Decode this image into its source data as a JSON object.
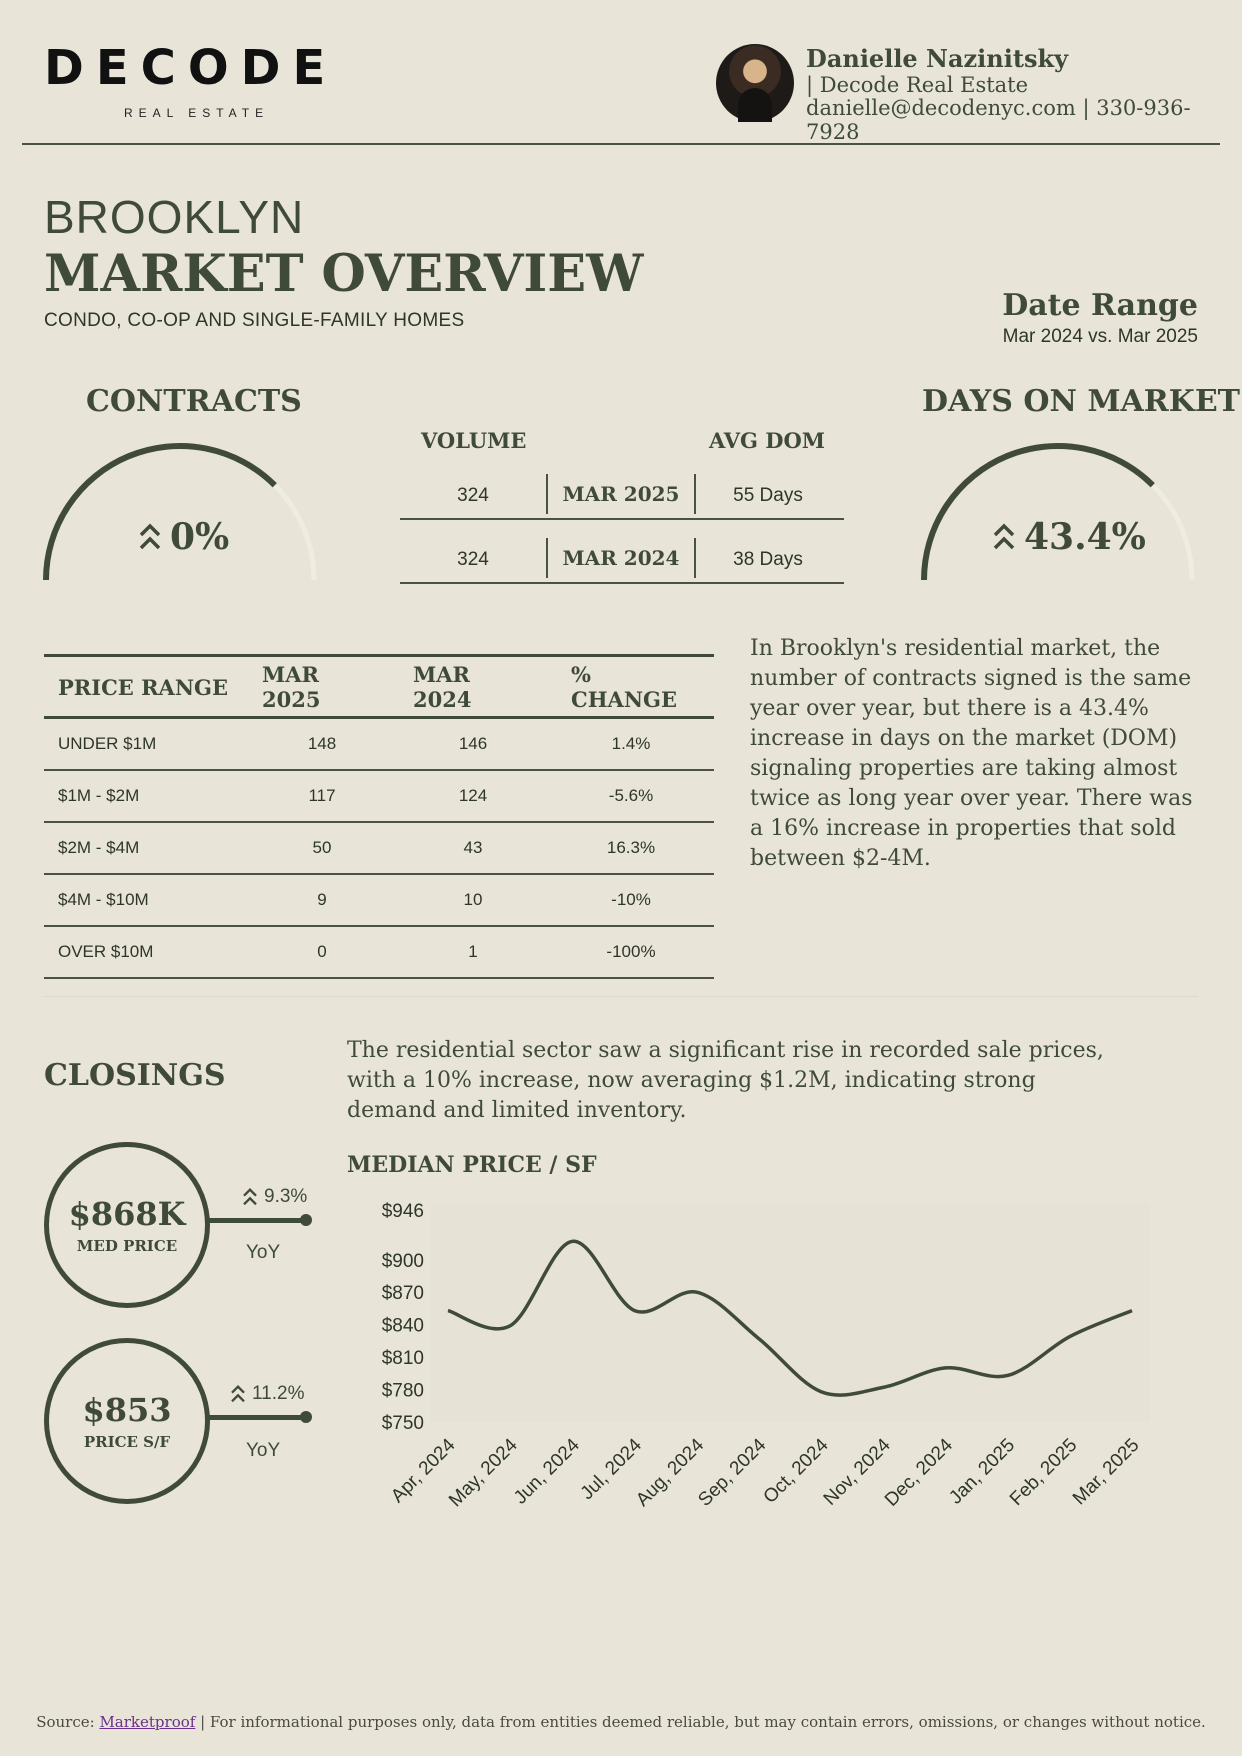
{
  "brand": {
    "name": "DECODE",
    "tagline": "REAL ESTATE"
  },
  "agent": {
    "name": "Danielle Nazinitsky",
    "company": "| Decode Real Estate",
    "contact": "danielle@decodenyc.com | 330-936-7928"
  },
  "title": {
    "city": "BROOKLYN",
    "heading": "MARKET OVERVIEW",
    "segment": "CONDO, CO-OP AND SINGLE-FAMILY HOMES"
  },
  "date_range": {
    "label": "Date Range",
    "value": "Mar 2024 vs. Mar 2025"
  },
  "contracts": {
    "title": "CONTRACTS",
    "change": "0%",
    "gauge_fraction": 0.75
  },
  "days_on_market": {
    "title": "DAYS ON MARKET",
    "change": "43.4%",
    "gauge_fraction": 0.75
  },
  "contract_table": {
    "volume_header": "VOLUME",
    "dom_header": "AVG DOM",
    "rows": [
      {
        "volume": "324",
        "period": "MAR 2025",
        "dom": "55 Days"
      },
      {
        "volume": "324",
        "period": "MAR 2024",
        "dom": "38 Days"
      }
    ]
  },
  "price_table": {
    "headers": [
      "PRICE RANGE",
      "MAR 2025",
      "MAR 2024",
      "% CHANGE"
    ],
    "rows": [
      [
        "UNDER $1M",
        "148",
        "146",
        "1.4%"
      ],
      [
        "$1M - $2M",
        "117",
        "124",
        "-5.6%"
      ],
      [
        "$2M - $4M",
        "50",
        "43",
        "16.3%"
      ],
      [
        "$4M - $10M",
        "9",
        "10",
        "-10%"
      ],
      [
        "OVER $10M",
        "0",
        "1",
        "-100%"
      ]
    ]
  },
  "summary_contracts": "In Brooklyn's residential market, the number of contracts signed is the same year over year, but there is a 43.4% increase in days on the market (DOM) signaling properties are taking almost twice as long year over year.  There was a 16% increase in properties that sold between $2-4M.",
  "closings": {
    "title": "CLOSINGS",
    "summary": "The residential sector saw a significant rise in recorded sale prices, with a 10% increase, now averaging $1.2M, indicating strong demand and limited inventory.",
    "med_price": {
      "value": "$868K",
      "label": "MED PRICE",
      "change": "9.3%",
      "period": "YoY"
    },
    "price_sf": {
      "value": "$853",
      "label": "PRICE S/F",
      "change": "11.2%",
      "period": "YoY"
    }
  },
  "chart_title": "MEDIAN PRICE / SF",
  "chart_data": {
    "type": "line",
    "categories": [
      "Apr, 2024",
      "May, 2024",
      "Jun, 2024",
      "Jul, 2024",
      "Aug, 2024",
      "Sep, 2024",
      "Oct, 2024",
      "Nov, 2024",
      "Dec, 2024",
      "Jan, 2025",
      "Feb, 2025",
      "Mar, 2025"
    ],
    "values": [
      853,
      839,
      917,
      853,
      870,
      827,
      778,
      782,
      800,
      793,
      829,
      853
    ],
    "y_ticks": [
      "$946",
      "$900",
      "$870",
      "$840",
      "$810",
      "$780",
      "$750"
    ],
    "y_tick_values": [
      946,
      900,
      870,
      840,
      810,
      780,
      750
    ],
    "ylim": [
      750,
      946
    ],
    "grid": false,
    "line_color": "#3f4a38"
  },
  "footer": {
    "prefix": "Source: ",
    "link": "Marketproof",
    "suffix": " | For informational purposes only, data from entities deemed reliable, but may contain errors, omissions, or changes without notice."
  }
}
